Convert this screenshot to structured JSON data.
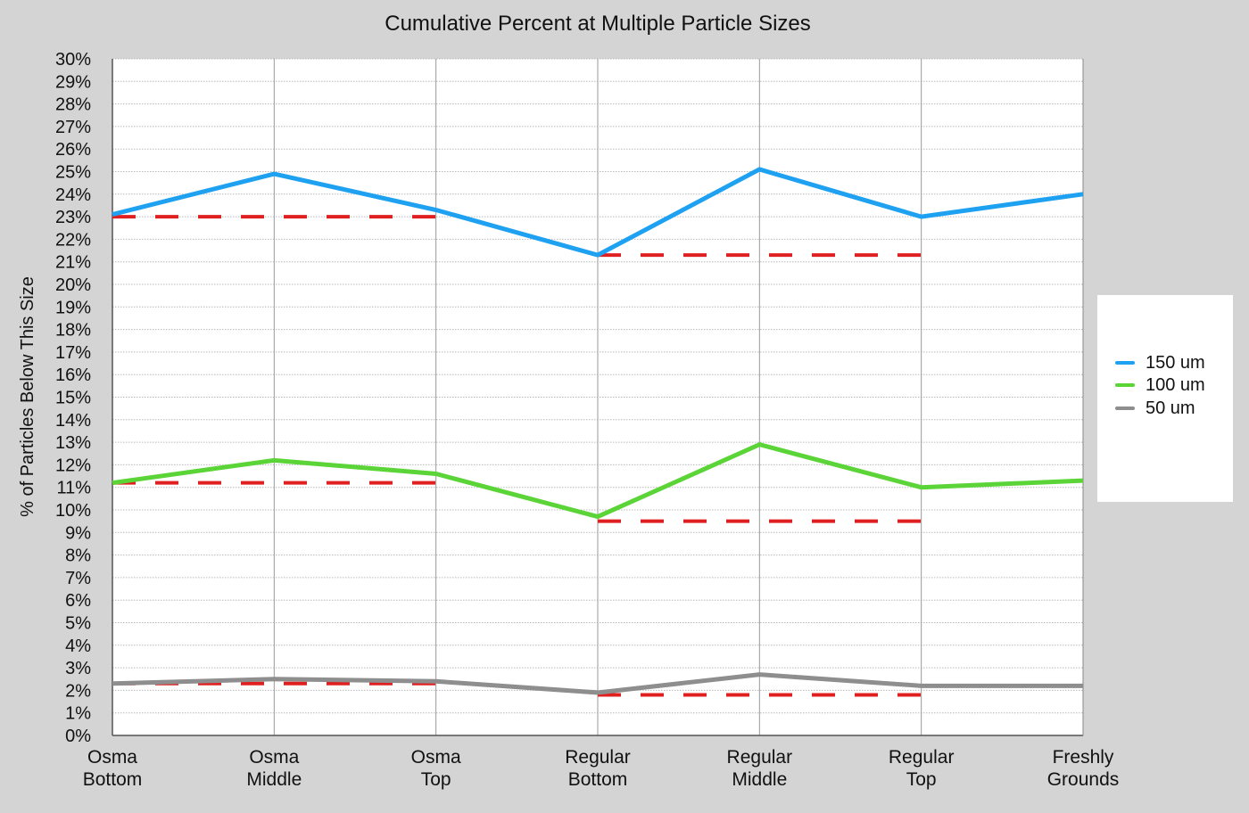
{
  "chart_data": {
    "type": "line",
    "title": "Cumulative Percent at Multiple Particle Sizes",
    "xlabel": "",
    "ylabel": "% of Particles Below This Size",
    "ylim": [
      0,
      30
    ],
    "yticks": [
      "0%",
      "1%",
      "2%",
      "3%",
      "4%",
      "5%",
      "6%",
      "7%",
      "8%",
      "9%",
      "10%",
      "11%",
      "12%",
      "13%",
      "14%",
      "15%",
      "16%",
      "17%",
      "18%",
      "19%",
      "20%",
      "21%",
      "22%",
      "23%",
      "24%",
      "25%",
      "26%",
      "27%",
      "28%",
      "29%",
      "30%"
    ],
    "categories": [
      [
        "Osma",
        "Bottom"
      ],
      [
        "Osma",
        "Middle"
      ],
      [
        "Osma",
        "Top"
      ],
      [
        "Regular",
        "Bottom"
      ],
      [
        "Regular",
        "Middle"
      ],
      [
        "Regular",
        "Top"
      ],
      [
        "Freshly",
        "Grounds"
      ]
    ],
    "grid": true,
    "legend_position": "right",
    "series": [
      {
        "name": "150 um",
        "color": "#1ea1f1",
        "values": [
          23.1,
          24.9,
          23.3,
          21.3,
          25.1,
          23.0,
          24.0
        ]
      },
      {
        "name": "100 um",
        "color": "#5bd437",
        "values": [
          11.2,
          12.2,
          11.6,
          9.7,
          12.9,
          11.0,
          11.3
        ]
      },
      {
        "name": "50 um",
        "color": "#8e8e8e",
        "values": [
          2.3,
          2.5,
          2.4,
          1.9,
          2.7,
          2.2,
          2.2
        ]
      }
    ],
    "reference_lines": [
      {
        "color": "#e02020",
        "from": 0,
        "to": 2,
        "y": 23.0
      },
      {
        "color": "#e02020",
        "from": 3,
        "to": 5,
        "y": 21.3
      },
      {
        "color": "#e02020",
        "from": 0,
        "to": 2,
        "y": 11.2
      },
      {
        "color": "#e02020",
        "from": 3,
        "to": 5,
        "y": 9.5
      },
      {
        "color": "#e02020",
        "from": 0,
        "to": 2,
        "y": 2.3
      },
      {
        "color": "#e02020",
        "from": 3,
        "to": 5,
        "y": 1.8
      }
    ]
  }
}
